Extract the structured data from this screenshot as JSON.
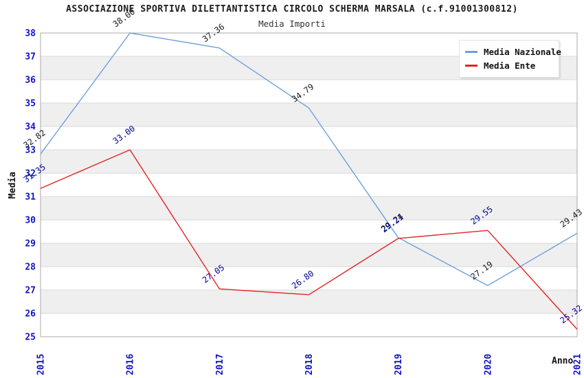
{
  "header": {
    "title": "ASSOCIAZIONE SPORTIVA DILETTANTISTICA CIRCOLO SCHERMA MARSALA (c.f.91001300812)",
    "subtitle": "Media Importi"
  },
  "chart_data": {
    "type": "line",
    "title": "ASSOCIAZIONE SPORTIVA DILETTANTISTICA CIRCOLO SCHERMA MARSALA (c.f.91001300812)",
    "subtitle": "Media Importi",
    "xlabel": "Anno",
    "ylabel": "Media",
    "categories": [
      "2015",
      "2016",
      "2017",
      "2018",
      "2019",
      "2020",
      "2021"
    ],
    "series": [
      {
        "name": "Media Nazionale",
        "color": "#6ca0dc",
        "label_color": "#1a1a1a",
        "values": [
          32.82,
          38.0,
          37.36,
          34.79,
          29.24,
          27.19,
          29.43
        ]
      },
      {
        "name": "Media Ente",
        "color": "#e32222",
        "label_color": "#000099",
        "values": [
          31.35,
          33.0,
          27.05,
          26.8,
          29.21,
          29.55,
          25.32
        ]
      }
    ],
    "ylim": [
      25,
      38
    ],
    "ytick_step": 1,
    "grid": true,
    "legend_position": "top-right",
    "tick_label_color": "#1111cc",
    "grid_color": "#d9d9d9",
    "axis_color": "#a8a8a8",
    "band_colors": [
      "#ffffff",
      "#efefef"
    ],
    "value_label_decimals": 2
  }
}
